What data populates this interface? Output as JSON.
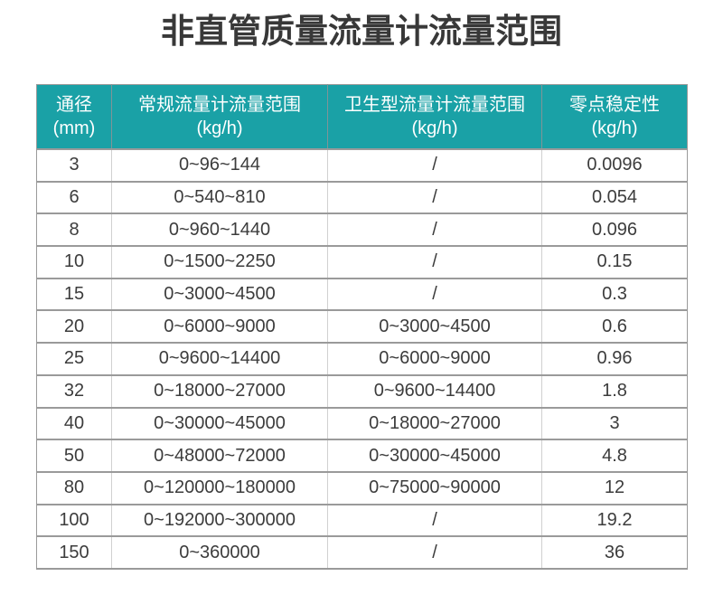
{
  "title": "非直管质量流量计流量范围",
  "table": {
    "headers": [
      {
        "line1": "通径",
        "line2": "(mm)"
      },
      {
        "line1": "常规流量计流量范围",
        "line2": "(kg/h)"
      },
      {
        "line1": "卫生型流量计流量范围",
        "line2": "(kg/h)"
      },
      {
        "line1": "零点稳定性",
        "line2": "(kg/h)"
      }
    ],
    "rows": [
      [
        "3",
        "0~96~144",
        "/",
        "0.0096"
      ],
      [
        "6",
        "0~540~810",
        "/",
        "0.054"
      ],
      [
        "8",
        "0~960~1440",
        "/",
        "0.096"
      ],
      [
        "10",
        "0~1500~2250",
        "/",
        "0.15"
      ],
      [
        "15",
        "0~3000~4500",
        "/",
        "0.3"
      ],
      [
        "20",
        "0~6000~9000",
        "0~3000~4500",
        "0.6"
      ],
      [
        "25",
        "0~9600~14400",
        "0~6000~9000",
        "0.96"
      ],
      [
        "32",
        "0~18000~27000",
        "0~9600~14400",
        "1.8"
      ],
      [
        "40",
        "0~30000~45000",
        "0~18000~27000",
        "3"
      ],
      [
        "50",
        "0~48000~72000",
        "0~30000~45000",
        "4.8"
      ],
      [
        "80",
        "0~120000~180000",
        "0~75000~90000",
        "12"
      ],
      [
        "100",
        "0~192000~300000",
        "/",
        "19.2"
      ],
      [
        "150",
        "0~360000",
        "/",
        "36"
      ]
    ]
  },
  "colors": {
    "header_bg": "#1aa1a6",
    "header_text": "#ffffff",
    "title_text": "#383838",
    "body_text": "#3c3c3c",
    "row_border": "#9a9a9a",
    "col_border": "#d0d0d0",
    "header_separator": "#7f9597"
  }
}
